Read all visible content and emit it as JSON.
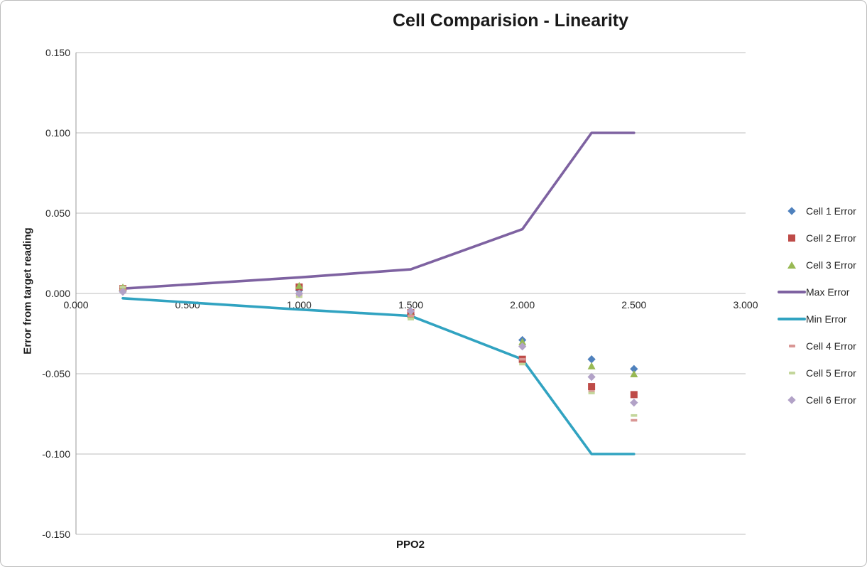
{
  "chart": {
    "title": "Cell Comparision - Linearity",
    "y_axis_title": "Error from target reading",
    "x_axis_title": "PPO2"
  },
  "chart_data": {
    "type": "scatter",
    "title": "Cell Comparision - Linearity",
    "xlabel": "PPO2",
    "ylabel": "Error from target reading",
    "xlim": [
      0,
      3
    ],
    "ylim": [
      -0.15,
      0.15
    ],
    "grid": true,
    "legend_position": "right",
    "x_tick_values": [
      0,
      0.5,
      1.0,
      1.5,
      2.0,
      2.5,
      3.0
    ],
    "x_tick_labels": [
      "0.000",
      "0.500",
      "1.000",
      "1.500",
      "2.000",
      "2.500",
      "3.000"
    ],
    "y_tick_values": [
      0.15,
      0.1,
      0.05,
      0,
      -0.05,
      -0.1,
      -0.15
    ],
    "y_tick_labels": [
      "0.150",
      "0.100",
      "0.050",
      "0.000",
      "-0.050",
      "-0.100",
      "-0.150"
    ],
    "x": [
      0.21,
      1.0,
      1.5,
      2.0,
      2.31,
      2.5
    ],
    "series": [
      {
        "name": "Cell 1 Error",
        "type": "scatter",
        "marker": "diamond",
        "color": "#4F81BD",
        "values": [
          0.002,
          0.002,
          -0.013,
          -0.029,
          -0.041,
          -0.047
        ]
      },
      {
        "name": "Cell 2 Error",
        "type": "scatter",
        "marker": "square",
        "color": "#BE4B48",
        "values": [
          0.003,
          0.004,
          -0.012,
          -0.041,
          -0.058,
          -0.063
        ]
      },
      {
        "name": "Cell 3 Error",
        "type": "scatter",
        "marker": "triangle",
        "color": "#98B954",
        "values": [
          0.004,
          0.005,
          -0.013,
          -0.03,
          -0.045,
          -0.05
        ]
      },
      {
        "name": "Max Error",
        "type": "line",
        "marker": "line",
        "color": "#7E62A1",
        "values": [
          0.003,
          0.01,
          0.015,
          0.04,
          0.1,
          0.1
        ]
      },
      {
        "name": "Min Error",
        "type": "line",
        "marker": "line",
        "color": "#31A3C1",
        "values": [
          -0.003,
          -0.01,
          -0.014,
          -0.041,
          -0.1,
          -0.1
        ]
      },
      {
        "name": "Cell 4 Error",
        "type": "scatter",
        "marker": "dash",
        "color": "#D99694",
        "values": [
          0.002,
          -0.001,
          -0.014,
          -0.041,
          -0.061,
          -0.079
        ]
      },
      {
        "name": "Cell 5 Error",
        "type": "scatter",
        "marker": "dash",
        "color": "#C3D69B",
        "values": [
          0.004,
          -0.002,
          -0.016,
          -0.044,
          -0.062,
          -0.076
        ]
      },
      {
        "name": "Cell 6 Error",
        "type": "scatter",
        "marker": "diamond",
        "color": "#B2A2C7",
        "values": [
          0.001,
          0.0,
          -0.011,
          -0.033,
          -0.052,
          -0.068
        ]
      }
    ]
  }
}
